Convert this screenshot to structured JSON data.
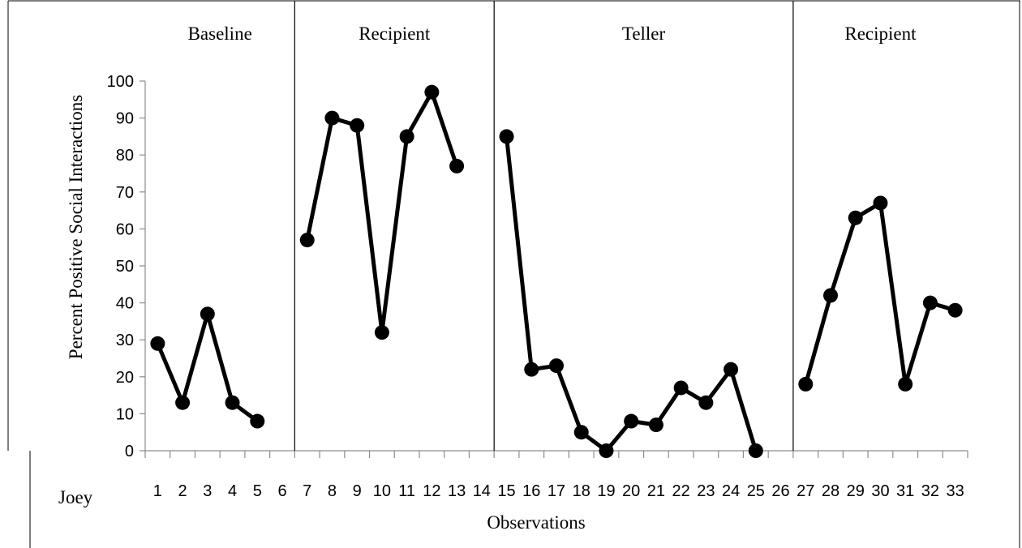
{
  "chart_data": {
    "type": "line",
    "xlabel": "Observations",
    "ylabel": "Percent Positive Social Interactions",
    "participant_label": "Joey",
    "ylim": [
      0,
      100
    ],
    "yticks": [
      "0",
      "10",
      "20",
      "30",
      "40",
      "50",
      "60",
      "70",
      "80",
      "90",
      "100"
    ],
    "xticks": [
      "1",
      "2",
      "3",
      "4",
      "5",
      "6",
      "7",
      "8",
      "9",
      "10",
      "11",
      "12",
      "13",
      "14",
      "15",
      "16",
      "17",
      "18",
      "19",
      "20",
      "21",
      "22",
      "23",
      "24",
      "25",
      "26",
      "27",
      "28",
      "29",
      "30",
      "31",
      "32",
      "33"
    ],
    "phase_change_after": [
      6,
      14,
      26
    ],
    "phases": [
      {
        "label": "Baseline",
        "x": [
          1,
          2,
          3,
          4,
          5
        ],
        "y": [
          29,
          13,
          37,
          13,
          8
        ]
      },
      {
        "label": "Recipient",
        "x": [
          7,
          8,
          9,
          10,
          11,
          12,
          13
        ],
        "y": [
          57,
          90,
          88,
          32,
          85,
          97,
          77
        ]
      },
      {
        "label": "Teller",
        "x": [
          15,
          16,
          17,
          18,
          19,
          20,
          21,
          22,
          23,
          24,
          25
        ],
        "y": [
          85,
          22,
          23,
          5,
          0,
          8,
          7,
          17,
          13,
          22,
          0
        ]
      },
      {
        "label": "Recipient",
        "x": [
          27,
          28,
          29,
          30,
          31,
          32,
          33
        ],
        "y": [
          18,
          42,
          63,
          67,
          18,
          40,
          38
        ]
      }
    ],
    "line_color": "#000000",
    "marker_color": "#000000",
    "grid": false
  }
}
